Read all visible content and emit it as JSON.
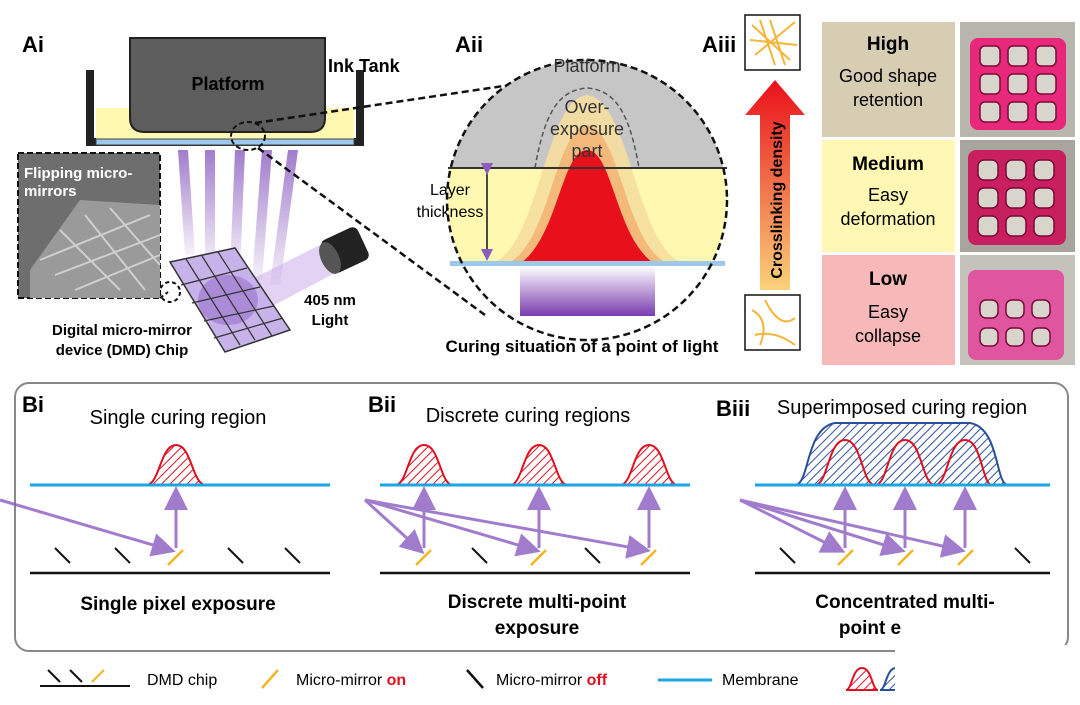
{
  "panel_a": {
    "ai": {
      "label": "Ai",
      "platform": "Platform",
      "ink_tank": "Ink Tank",
      "inset": [
        "Flipping micro-",
        "mirrors"
      ],
      "dmd": [
        "Digital micro-mirror",
        "device (DMD) Chip"
      ],
      "light": [
        "405 nm",
        "Light"
      ]
    },
    "aii": {
      "label": "Aii",
      "platform": "Platform",
      "overexposure": [
        "Over-",
        "exposure",
        "part"
      ],
      "layer": [
        "Layer",
        "thickness"
      ],
      "caption": "Curing situation of a point of light"
    },
    "aiii": {
      "label": "Aiii",
      "axis": "Crosslinking density",
      "levels": [
        {
          "name": "High",
          "desc": [
            "Good shape",
            "retention"
          ]
        },
        {
          "name": "Medium",
          "desc": [
            "Easy",
            "deformation"
          ]
        },
        {
          "name": "Low",
          "desc": [
            "Easy",
            "collapse"
          ]
        }
      ]
    }
  },
  "panel_b": [
    {
      "label": "Bi",
      "title": "Single curing region",
      "caption": [
        "Single pixel exposure"
      ]
    },
    {
      "label": "Bii",
      "title": "Discrete curing regions",
      "caption": [
        "Discrete multi-point",
        "exposure"
      ]
    },
    {
      "label": "Biii",
      "title": "Superimposed curing region",
      "caption": [
        "Concentrated multi-",
        "point e"
      ]
    }
  ],
  "legend": {
    "dmd_chip": "DMD chip",
    "mirror_on": [
      "Micro-mirror",
      "on"
    ],
    "mirror_off": [
      "Micro-mirror",
      "off"
    ],
    "membrane": "Membrane"
  }
}
